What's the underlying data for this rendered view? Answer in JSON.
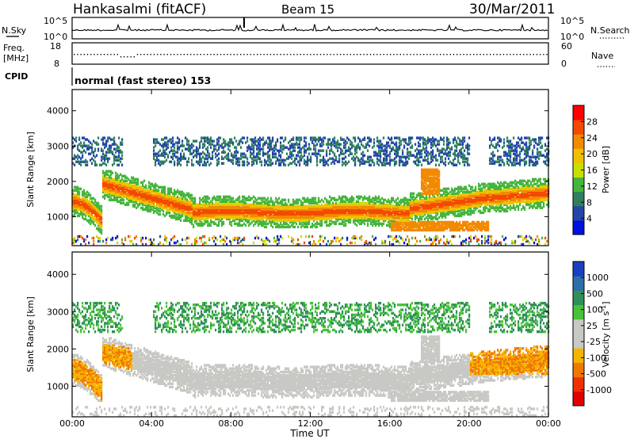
{
  "header": {
    "station": "Hankasalmi (fitACF)",
    "beam": "Beam 15",
    "date": "30/Mar/2011"
  },
  "nsky_panel": {
    "left_label": "N.Sky",
    "right_label": "N.Search",
    "left_ticks": [
      "10^5",
      "10^0"
    ],
    "right_ticks": [
      "10^5",
      "10^0"
    ]
  },
  "freq_panel": {
    "left_label_1": "Freq.",
    "left_label_2": "[MHz]",
    "left_ticks": [
      "18",
      "8"
    ],
    "right_ticks": [
      "60",
      "0"
    ],
    "right_label": "Nave"
  },
  "cpid_panel": {
    "label": "CPID",
    "text": "normal (fast stereo) 153"
  },
  "chart_data": [
    {
      "type": "heatmap",
      "name": "power",
      "ylabel": "Slant Range [km]",
      "ylim": [
        180,
        4600
      ],
      "yticks": [
        "1000",
        "2000",
        "3000",
        "4000"
      ],
      "colorbar_label": "Power [dB]",
      "colorbar_ticks": [
        "4",
        "8",
        "12",
        "16",
        "20",
        "24",
        "28"
      ],
      "colors": [
        "#0010e0",
        "#2346a8",
        "#2f7f5f",
        "#45b63d",
        "#c8e000",
        "#f0c000",
        "#f28a00",
        "#f44a00",
        "#ff0000"
      ],
      "grid": false
    },
    {
      "type": "heatmap",
      "name": "velocity",
      "ylabel": "Slant Range [km]",
      "ylim": [
        180,
        4600
      ],
      "yticks": [
        "1000",
        "2000",
        "3000",
        "4000"
      ],
      "colorbar_label": "Velocity [m s-1]",
      "colorbar_ticks": [
        "1000",
        "500",
        "100",
        "25",
        "-25",
        "-100",
        "-500",
        "-1000"
      ],
      "colors": [
        "#1a3fc0",
        "#2e6fa8",
        "#2f8f5a",
        "#48c23a",
        "#c8c8c4",
        "#c8c8c4",
        "#f5b400",
        "#f07800",
        "#f03000",
        "#e00000"
      ],
      "grid": false
    }
  ],
  "time_axis": {
    "ticks": [
      "00:00",
      "04:00",
      "08:00",
      "12:00",
      "16:00",
      "20:00",
      "00:00"
    ],
    "label": "Time UT"
  }
}
